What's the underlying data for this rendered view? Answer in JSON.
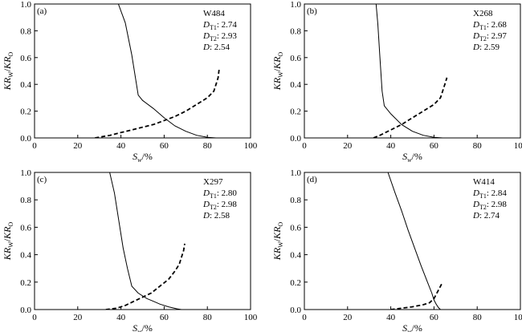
{
  "chart_data": [
    {
      "type": "line",
      "panel_label": "(a)",
      "well": "W484",
      "params": [
        {
          "symbol": "D",
          "sub": "T1",
          "value": "2.74"
        },
        {
          "symbol": "D",
          "sub": "T2",
          "value": "2.93"
        },
        {
          "symbol": "D",
          "sub": "",
          "value": "2.54"
        }
      ],
      "xlabel": {
        "main": "S",
        "sub": "w",
        "unit": "/%"
      },
      "ylabel": {
        "a": "KR",
        "a_sub": "W",
        "sep": "/",
        "b": "KR",
        "b_sub": "O"
      },
      "xlim": [
        0,
        100
      ],
      "ylim": [
        0,
        1.0
      ],
      "xticks": [
        "0",
        "20",
        "40",
        "60",
        "80",
        "100"
      ],
      "yticks": [
        "0.0",
        "0.2",
        "0.4",
        "0.6",
        "0.8",
        "1.0"
      ],
      "series": [
        {
          "style": "solid",
          "points": [
            [
              38.8,
              1.0
            ],
            [
              42,
              0.86
            ],
            [
              45,
              0.62
            ],
            [
              48,
              0.32
            ],
            [
              50,
              0.28
            ],
            [
              55,
              0.22
            ],
            [
              60,
              0.15
            ],
            [
              65,
              0.09
            ],
            [
              70,
              0.05
            ],
            [
              75,
              0.02
            ],
            [
              80,
              0.005
            ],
            [
              84,
              0.0
            ]
          ]
        },
        {
          "style": "dashed",
          "points": [
            [
              28,
              0.0
            ],
            [
              35,
              0.02
            ],
            [
              40,
              0.04
            ],
            [
              45,
              0.06
            ],
            [
              50,
              0.08
            ],
            [
              55,
              0.1
            ],
            [
              60,
              0.13
            ],
            [
              65,
              0.16
            ],
            [
              70,
              0.2
            ],
            [
              75,
              0.25
            ],
            [
              80,
              0.3
            ],
            [
              83,
              0.35
            ],
            [
              84,
              0.4
            ],
            [
              85,
              0.45
            ],
            [
              85.5,
              0.52
            ]
          ]
        }
      ]
    },
    {
      "type": "line",
      "panel_label": "(b)",
      "well": "X268",
      "params": [
        {
          "symbol": "D",
          "sub": "T1",
          "value": "2.68"
        },
        {
          "symbol": "D",
          "sub": "T2",
          "value": "2.97"
        },
        {
          "symbol": "D",
          "sub": "",
          "value": "2.59"
        }
      ],
      "xlabel": {
        "main": "S",
        "sub": "w",
        "unit": "/%"
      },
      "ylabel": {
        "a": "KR",
        "a_sub": "W",
        "sep": "/",
        "b": "KR",
        "b_sub": "O"
      },
      "xlim": [
        0,
        100
      ],
      "ylim": [
        0,
        1.0
      ],
      "xticks": [
        "0",
        "20",
        "40",
        "60",
        "80",
        "100"
      ],
      "yticks": [
        "0.0",
        "0.2",
        "0.4",
        "0.6",
        "0.8",
        "1.0"
      ],
      "series": [
        {
          "style": "solid",
          "points": [
            [
              33.2,
              1.0
            ],
            [
              34,
              0.85
            ],
            [
              35,
              0.6
            ],
            [
              36,
              0.35
            ],
            [
              37,
              0.24
            ],
            [
              40,
              0.18
            ],
            [
              45,
              0.1
            ],
            [
              50,
              0.05
            ],
            [
              55,
              0.02
            ],
            [
              60,
              0.005
            ],
            [
              64,
              0.0
            ]
          ]
        },
        {
          "style": "dashed",
          "points": [
            [
              32,
              0.0
            ],
            [
              35,
              0.02
            ],
            [
              40,
              0.06
            ],
            [
              45,
              0.1
            ],
            [
              50,
              0.15
            ],
            [
              55,
              0.2
            ],
            [
              60,
              0.25
            ],
            [
              63,
              0.3
            ],
            [
              64,
              0.35
            ],
            [
              65,
              0.4
            ],
            [
              66,
              0.45
            ]
          ]
        }
      ]
    },
    {
      "type": "line",
      "panel_label": "(c)",
      "well": "X297",
      "params": [
        {
          "symbol": "D",
          "sub": "T1",
          "value": "2.80"
        },
        {
          "symbol": "D",
          "sub": "T2",
          "value": "2.98"
        },
        {
          "symbol": "D",
          "sub": "",
          "value": "2.58"
        }
      ],
      "xlabel": {
        "main": "S",
        "sub": "w",
        "unit": "/%"
      },
      "ylabel": {
        "a": "KR",
        "a_sub": "W",
        "sep": "/",
        "b": "KR",
        "b_sub": "O"
      },
      "xlim": [
        0,
        100
      ],
      "ylim": [
        0,
        1.0
      ],
      "xticks": [
        "0",
        "20",
        "40",
        "60",
        "80",
        "100"
      ],
      "yticks": [
        "0.0",
        "0.2",
        "0.4",
        "0.6",
        "0.8",
        "1.0"
      ],
      "series": [
        {
          "style": "solid",
          "points": [
            [
              34.8,
              1.0
            ],
            [
              37,
              0.85
            ],
            [
              39,
              0.65
            ],
            [
              41,
              0.45
            ],
            [
              43,
              0.3
            ],
            [
              45,
              0.17
            ],
            [
              48,
              0.12
            ],
            [
              52,
              0.08
            ],
            [
              55,
              0.06
            ],
            [
              58,
              0.04
            ],
            [
              62,
              0.02
            ],
            [
              66,
              0.005
            ],
            [
              68,
              0.0
            ]
          ]
        },
        {
          "style": "dashed",
          "points": [
            [
              33,
              0.0
            ],
            [
              38,
              0.01
            ],
            [
              42,
              0.03
            ],
            [
              46,
              0.06
            ],
            [
              50,
              0.09
            ],
            [
              54,
              0.12
            ],
            [
              58,
              0.17
            ],
            [
              62,
              0.22
            ],
            [
              65,
              0.28
            ],
            [
              67,
              0.33
            ],
            [
              68,
              0.38
            ],
            [
              69,
              0.43
            ],
            [
              69.5,
              0.48
            ]
          ]
        }
      ]
    },
    {
      "type": "line",
      "panel_label": "(d)",
      "well": "W414",
      "params": [
        {
          "symbol": "D",
          "sub": "T1",
          "value": "2.84"
        },
        {
          "symbol": "D",
          "sub": "T2",
          "value": "2.98"
        },
        {
          "symbol": "D",
          "sub": "",
          "value": "2.74"
        }
      ],
      "xlabel": {
        "main": "S",
        "sub": "w",
        "unit": "/%"
      },
      "ylabel": {
        "a": "KR",
        "a_sub": "W",
        "sep": "/",
        "b": "KR",
        "b_sub": "O"
      },
      "xlim": [
        0,
        100
      ],
      "ylim": [
        0,
        1.0
      ],
      "xticks": [
        "0",
        "20",
        "40",
        "60",
        "80",
        "100"
      ],
      "yticks": [
        "0.0",
        "0.2",
        "0.4",
        "0.6",
        "0.8",
        "1.0"
      ],
      "series": [
        {
          "style": "solid",
          "points": [
            [
              38.7,
              1.0
            ],
            [
              42,
              0.85
            ],
            [
              45,
              0.72
            ],
            [
              48,
              0.58
            ],
            [
              51,
              0.45
            ],
            [
              54,
              0.32
            ],
            [
              57,
              0.2
            ],
            [
              59,
              0.12
            ],
            [
              60,
              0.07
            ],
            [
              61,
              0.04
            ],
            [
              62,
              0.015
            ],
            [
              63,
              0.0
            ]
          ]
        },
        {
          "style": "dashed",
          "points": [
            [
              40,
              0.0
            ],
            [
              45,
              0.01
            ],
            [
              50,
              0.02
            ],
            [
              55,
              0.035
            ],
            [
              58,
              0.05
            ],
            [
              60,
              0.08
            ],
            [
              61,
              0.11
            ],
            [
              62,
              0.14
            ],
            [
              63,
              0.17
            ],
            [
              64,
              0.2
            ]
          ]
        }
      ]
    }
  ]
}
